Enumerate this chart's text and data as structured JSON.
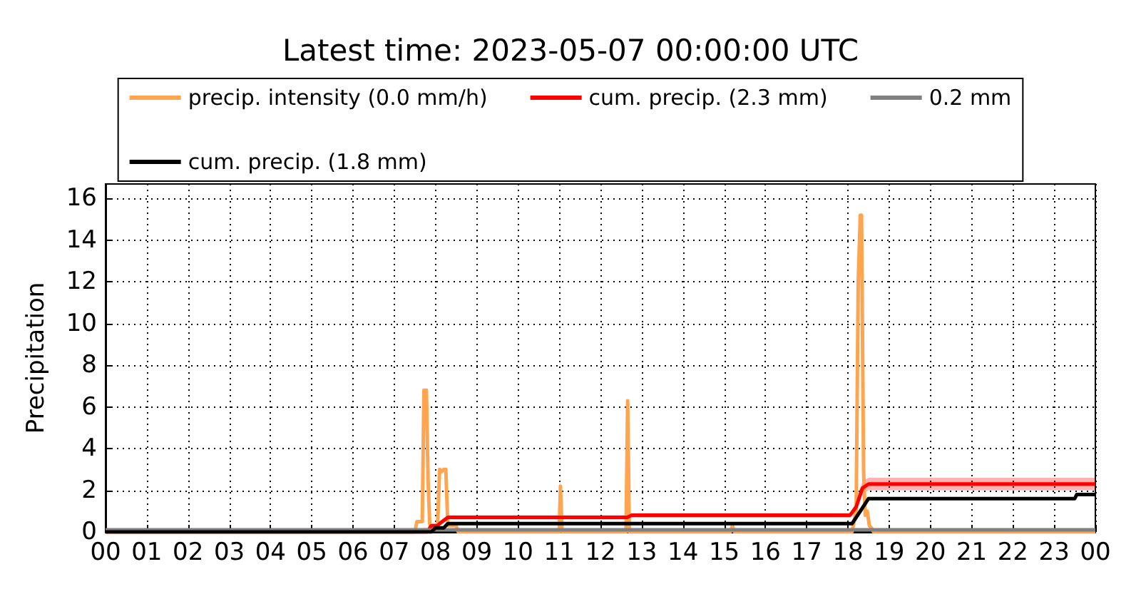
{
  "chart_data": {
    "type": "line",
    "title": "Latest time: 2023-05-07 00:00:00 UTC",
    "ylabel": "Precipitation",
    "xlim": [
      0,
      24
    ],
    "xticks": [
      {
        "value": 0,
        "label": "00"
      },
      {
        "value": 1,
        "label": "01"
      },
      {
        "value": 2,
        "label": "02"
      },
      {
        "value": 3,
        "label": "03"
      },
      {
        "value": 4,
        "label": "04"
      },
      {
        "value": 5,
        "label": "05"
      },
      {
        "value": 6,
        "label": "06"
      },
      {
        "value": 7,
        "label": "07"
      },
      {
        "value": 8,
        "label": "08"
      },
      {
        "value": 9,
        "label": "09"
      },
      {
        "value": 10,
        "label": "10"
      },
      {
        "value": 11,
        "label": "11"
      },
      {
        "value": 12,
        "label": "12"
      },
      {
        "value": 13,
        "label": "13"
      },
      {
        "value": 14,
        "label": "14"
      },
      {
        "value": 15,
        "label": "15"
      },
      {
        "value": 16,
        "label": "16"
      },
      {
        "value": 17,
        "label": "17"
      },
      {
        "value": 18,
        "label": "18"
      },
      {
        "value": 19,
        "label": "19"
      },
      {
        "value": 20,
        "label": "20"
      },
      {
        "value": 21,
        "label": "21"
      },
      {
        "value": 22,
        "label": "22"
      },
      {
        "value": 23,
        "label": "23"
      },
      {
        "value": 24,
        "label": "00"
      }
    ],
    "ylim": [
      0,
      16.7
    ],
    "yticks": [
      0,
      2,
      4,
      6,
      8,
      10,
      12,
      14,
      16
    ],
    "grid": true,
    "legend": "top",
    "marker": "none",
    "line_style": "solid",
    "series": [
      {
        "name": "precip. intensity (0.0 mm/h)",
        "color": "#ffa54f",
        "x": [
          0,
          7.5,
          7.55,
          7.68,
          7.72,
          7.78,
          7.82,
          7.86,
          7.9,
          8.05,
          8.1,
          8.15,
          8.2,
          8.25,
          8.3,
          8.5,
          8.55,
          11.0,
          11.03,
          11.07,
          12.62,
          12.66,
          12.7,
          15.15,
          15.2,
          15.25,
          18.1,
          18.2,
          18.25,
          18.3,
          18.33,
          18.38,
          18.42,
          18.47,
          18.52,
          18.57,
          18.62,
          24
        ],
        "values": [
          0,
          0,
          0.5,
          0.5,
          6.8,
          6.8,
          2.5,
          0.4,
          0,
          0.3,
          3,
          2.9,
          3,
          3,
          0.3,
          0.3,
          0,
          0,
          2.2,
          0,
          0,
          6.3,
          0,
          0,
          0.3,
          0,
          0,
          1,
          12,
          15.2,
          15.2,
          3,
          0.8,
          1,
          0.3,
          0.2,
          0,
          0
        ]
      },
      {
        "name": "cum. precip. (2.3 mm)",
        "color": "#ff0000",
        "x": [
          0,
          7.8,
          7.9,
          8.05,
          8.1,
          8.3,
          12.65,
          12.75,
          18.05,
          18.2,
          18.35,
          18.5,
          18.7,
          24
        ],
        "values": [
          0,
          0,
          0.3,
          0.3,
          0.4,
          0.7,
          0.7,
          0.8,
          0.8,
          1.2,
          2.1,
          2.3,
          2.3,
          2.3
        ],
        "lower": [
          0,
          0,
          0.2,
          0.2,
          0.3,
          0.6,
          0.6,
          0.7,
          0.7,
          1.0,
          1.8,
          2.0,
          2.0,
          2.0
        ],
        "upper": [
          0.1,
          0.1,
          0.4,
          0.4,
          0.5,
          0.8,
          0.8,
          0.9,
          0.9,
          1.4,
          2.4,
          2.6,
          2.6,
          2.6
        ]
      },
      {
        "name": "0.2 mm",
        "color": "#808080",
        "x": [
          0,
          24
        ],
        "values": [
          0.1,
          0.1
        ]
      },
      {
        "name": "cum. precip. (1.8 mm)",
        "color": "#000000",
        "x": [
          0,
          7.9,
          8.0,
          8.2,
          8.3,
          18.1,
          18.3,
          18.5,
          23.5,
          23.55,
          24
        ],
        "values": [
          0,
          0,
          0.2,
          0.2,
          0.4,
          0.4,
          1.0,
          1.6,
          1.6,
          1.8,
          1.8
        ]
      }
    ]
  }
}
